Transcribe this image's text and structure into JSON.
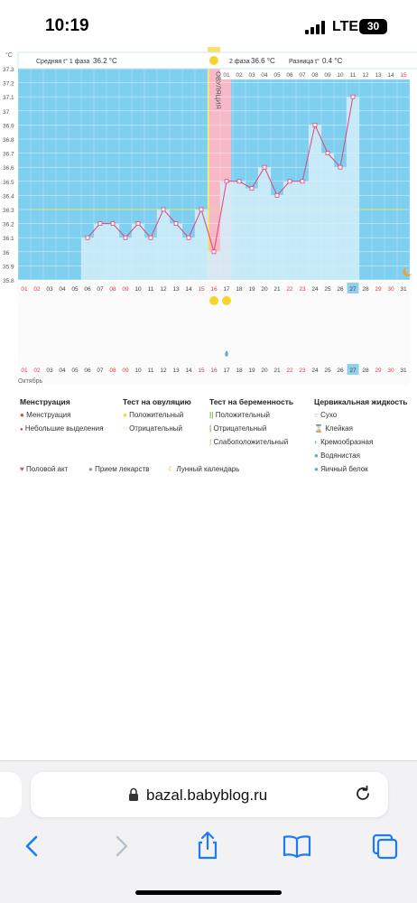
{
  "status": {
    "time": "10:19",
    "carrier": "LTE",
    "battery": "30"
  },
  "chart_data": {
    "type": "line",
    "unit_label": "°C",
    "summary": {
      "phase1_label": "Средняя t° 1 фаза",
      "phase1_value": "36.2 °C",
      "phase2_label": "2 фаза",
      "phase2_value": "36.6 °C",
      "diff_label": "Разница t°",
      "diff_value": "0.4 °C"
    },
    "ovulation_label": "ОВУЛЯЦИЯ",
    "ovulation_day": "16",
    "ylim": [
      35.8,
      37.3
    ],
    "yticks": [
      "37.3",
      "37.2",
      "37.1",
      "37",
      "36.9",
      "36.8",
      "36.7",
      "36.6",
      "36.5",
      "36.4",
      "36.3",
      "36.2",
      "36.1",
      "36",
      "35.9",
      "35.8"
    ],
    "coverline": 36.3,
    "cycle_days": [
      "01",
      "02",
      "03",
      "04",
      "05",
      "06",
      "07",
      "08",
      "09",
      "10",
      "11",
      "12",
      "13",
      "14",
      "15"
    ],
    "dates": [
      "01",
      "02",
      "03",
      "04",
      "05",
      "06",
      "07",
      "08",
      "09",
      "10",
      "11",
      "12",
      "13",
      "14",
      "15",
      "16",
      "17",
      "18",
      "19",
      "20",
      "21",
      "22",
      "23",
      "24",
      "25",
      "26",
      "27",
      "28",
      "29",
      "30",
      "31"
    ],
    "dates_red": [
      "01",
      "02",
      "08",
      "09",
      "15",
      "16",
      "22",
      "23",
      "29",
      "30"
    ],
    "today": "27",
    "month_label": "Октябрь",
    "series": [
      {
        "x": [
          "06",
          "07",
          "08",
          "09",
          "10",
          "11",
          "12",
          "13",
          "14",
          "15",
          "16",
          "17",
          "18",
          "19",
          "20",
          "21",
          "22",
          "23",
          "24",
          "25",
          "26",
          "27"
        ],
        "values": [
          36.1,
          36.2,
          36.2,
          36.1,
          36.2,
          36.1,
          36.3,
          36.2,
          36.1,
          36.3,
          36.0,
          36.5,
          36.5,
          36.45,
          36.6,
          36.4,
          36.5,
          36.5,
          36.9,
          36.7,
          36.6,
          37.1
        ]
      }
    ],
    "ovulation_test_positive_days": [
      "16",
      "17"
    ],
    "fluid_watery_days": [
      "17"
    ]
  },
  "legend": {
    "menstruation_title": "Менструация",
    "menstruation_items": [
      "Менструация",
      "Небольшие выделения"
    ],
    "ovulation_test_title": "Тест на овуляцию",
    "ovulation_test_items": [
      "Положительный",
      "Отрицательный"
    ],
    "pregnancy_test_title": "Тест на беременность",
    "pregnancy_test_items": [
      "Положительный",
      "Отрицательный",
      "Слабоположительный"
    ],
    "cervical_title": "Цервикальная жидкость",
    "cervical_items": [
      "Сухо",
      "Клейкая",
      "Кремообразная",
      "Водянистая",
      "Яичный белок"
    ],
    "bottom_items": [
      "Половой акт",
      "Прием лекарств",
      "Лунный календарь"
    ]
  },
  "colors": {
    "phase_blue": "#7fcff0",
    "fill_light": "#d4eefa",
    "line_pink": "#e0427a",
    "ovulation_yellow": "#f7e36b",
    "period_pink": "#f6b9c8",
    "today_blue": "#8fd0ee",
    "red_text": "#e23a4b"
  },
  "browser": {
    "url": "bazal.babyblog.ru"
  }
}
